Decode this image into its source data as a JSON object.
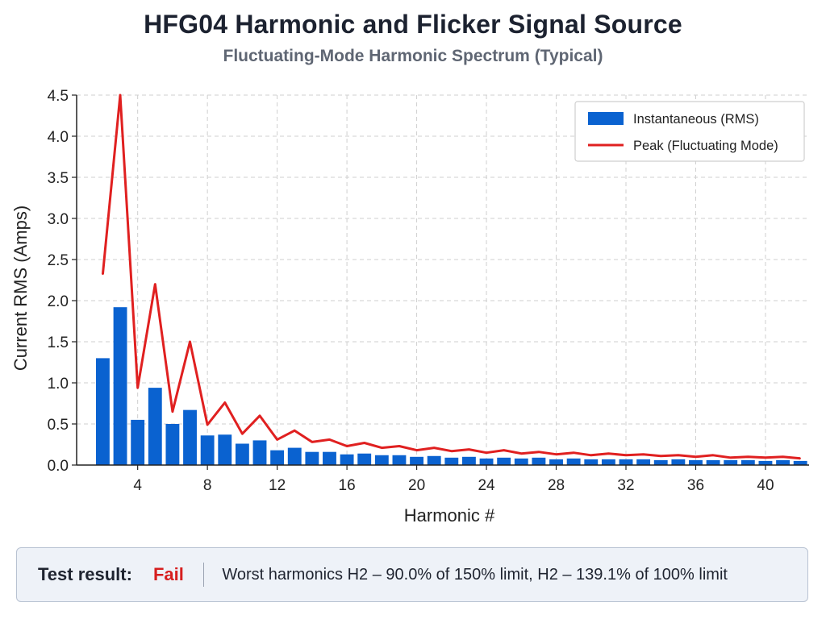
{
  "header": {
    "title": "HFG04 Harmonic and Flicker Signal Source",
    "subtitle": "Fluctuating-Mode Harmonic Spectrum (Typical)"
  },
  "chart_data": {
    "type": "bar",
    "xlabel": "Harmonic #",
    "ylabel": "Current RMS (Amps)",
    "xlim": [
      0.5,
      42.5
    ],
    "ylim": [
      0,
      4.5
    ],
    "xticks": [
      4,
      8,
      12,
      16,
      20,
      24,
      28,
      32,
      36,
      40
    ],
    "yticks": [
      0.0,
      0.5,
      1.0,
      1.5,
      2.0,
      2.5,
      3.0,
      3.5,
      4.0,
      4.5
    ],
    "grid": true,
    "legend_position": "top-right",
    "x": [
      2,
      3,
      4,
      5,
      6,
      7,
      8,
      9,
      10,
      11,
      12,
      13,
      14,
      15,
      16,
      17,
      18,
      19,
      20,
      21,
      22,
      23,
      24,
      25,
      26,
      27,
      28,
      29,
      30,
      31,
      32,
      33,
      34,
      35,
      36,
      37,
      38,
      39,
      40,
      41,
      42
    ],
    "series": [
      {
        "name": "Instantaneous (RMS)",
        "kind": "bar",
        "color": "#0a62d0",
        "values": [
          1.3,
          1.92,
          0.55,
          0.94,
          0.5,
          0.67,
          0.36,
          0.37,
          0.26,
          0.3,
          0.18,
          0.21,
          0.16,
          0.16,
          0.13,
          0.14,
          0.12,
          0.12,
          0.1,
          0.11,
          0.09,
          0.1,
          0.08,
          0.09,
          0.08,
          0.09,
          0.07,
          0.08,
          0.07,
          0.07,
          0.07,
          0.07,
          0.06,
          0.07,
          0.06,
          0.06,
          0.06,
          0.06,
          0.05,
          0.06,
          0.05
        ]
      },
      {
        "name": "Peak (Fluctuating Mode)",
        "kind": "line",
        "color": "#e02020",
        "values": [
          2.32,
          4.5,
          0.94,
          2.2,
          0.65,
          1.5,
          0.49,
          0.76,
          0.38,
          0.6,
          0.31,
          0.42,
          0.28,
          0.31,
          0.23,
          0.27,
          0.21,
          0.23,
          0.18,
          0.21,
          0.17,
          0.19,
          0.15,
          0.18,
          0.14,
          0.16,
          0.13,
          0.15,
          0.12,
          0.14,
          0.12,
          0.13,
          0.11,
          0.12,
          0.1,
          0.12,
          0.09,
          0.1,
          0.09,
          0.1,
          0.08
        ]
      }
    ]
  },
  "result": {
    "label": "Test result:",
    "value": "Fail",
    "value_color": "#d61f1f",
    "detail": "Worst harmonics H2 – 90.0% of 150% limit, H2 – 139.1% of 100% limit"
  }
}
